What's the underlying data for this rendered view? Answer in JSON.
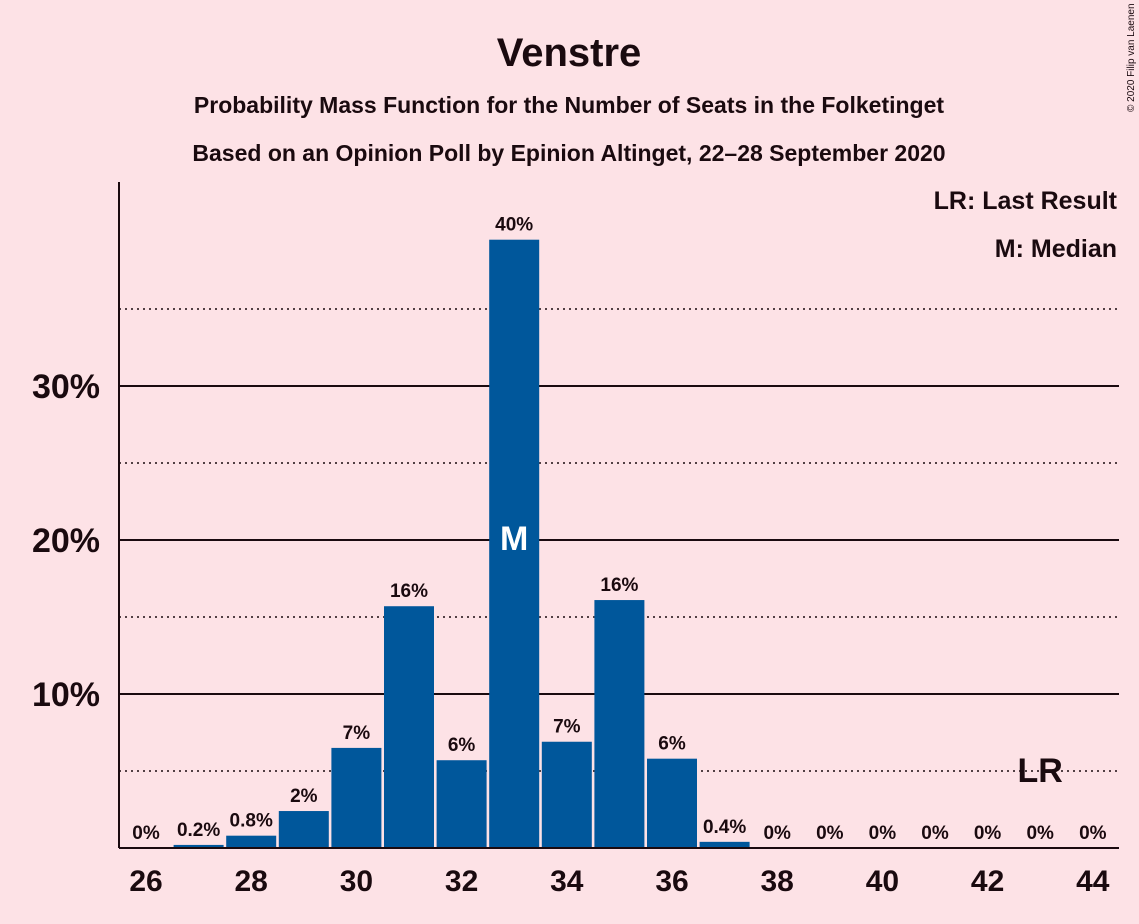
{
  "chart_data": {
    "type": "bar",
    "title": "Venstre",
    "subtitle_line1": "Probability Mass Function for the Number of Seats in the Folketinget",
    "subtitle_line2": "Based on an Opinion Poll by Epinion Altinget, 22–28 September 2020",
    "copyright": "© 2020 Filip van Laenen",
    "legend": {
      "last_result": "LR: Last Result",
      "median": "M: Median",
      "placement": "top-right"
    },
    "x": [
      26,
      27,
      28,
      29,
      30,
      31,
      32,
      33,
      34,
      35,
      36,
      37,
      38,
      39,
      40,
      41,
      42,
      43,
      44
    ],
    "values": [
      0,
      0.2,
      0.8,
      2.4,
      6.5,
      15.7,
      5.7,
      39.5,
      6.9,
      16.1,
      5.8,
      0.4,
      0,
      0,
      0,
      0,
      0,
      0,
      0
    ],
    "value_labels": [
      "0%",
      "0.2%",
      "0.8%",
      "2%",
      "7%",
      "16%",
      "6%",
      "40%",
      "7%",
      "16%",
      "6%",
      "0.4%",
      "0%",
      "0%",
      "0%",
      "0%",
      "0%",
      "0%",
      "0%"
    ],
    "xticks": [
      26,
      28,
      30,
      32,
      34,
      36,
      38,
      40,
      42,
      44
    ],
    "yticks": [
      {
        "value": 10,
        "label": "10%"
      },
      {
        "value": 20,
        "label": "20%"
      },
      {
        "value": 30,
        "label": "30%"
      }
    ],
    "dotted_gridlines": [
      5,
      15,
      25,
      35
    ],
    "ylim": [
      0,
      43
    ],
    "xlabel": "",
    "ylabel": "",
    "median_seat": 33,
    "median_marker": "M",
    "last_result_seat": 43,
    "last_result_marker": "LR",
    "bar_color": "#00579b",
    "background_color": "#fde2e6"
  }
}
